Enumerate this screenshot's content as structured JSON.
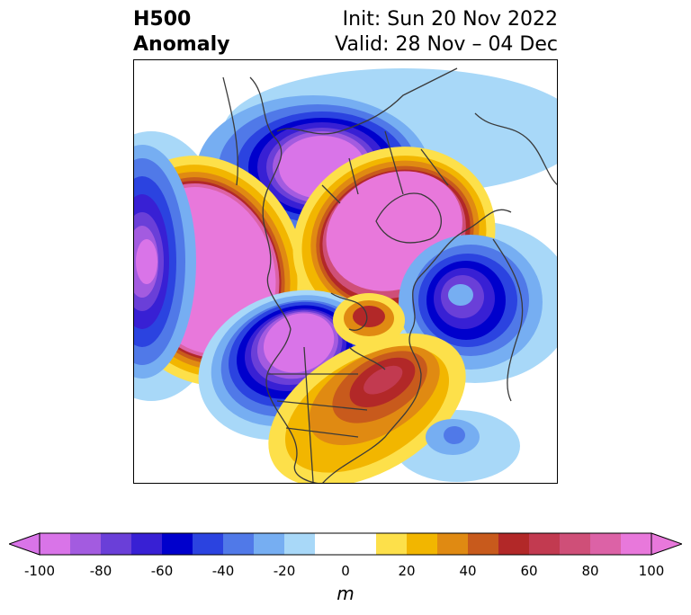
{
  "title": {
    "line1": "H500",
    "line2": "Anomaly",
    "init": "Init: Sun 20 Nov 2022",
    "valid": "Valid: 28 Nov – 04 Dec"
  },
  "colorbar": {
    "unit": "m",
    "ticks": [
      "-100",
      "-80",
      "-60",
      "-40",
      "-20",
      "0",
      "20",
      "40",
      "60",
      "80",
      "100"
    ],
    "bins": [
      {
        "range": [
          -100,
          -90
        ],
        "color": "#d974e8"
      },
      {
        "range": [
          -90,
          -80
        ],
        "color": "#a35be0"
      },
      {
        "range": [
          -80,
          -70
        ],
        "color": "#6a3fd8"
      },
      {
        "range": [
          -70,
          -60
        ],
        "color": "#3820d4"
      },
      {
        "range": [
          -60,
          -50
        ],
        "color": "#0000cc"
      },
      {
        "range": [
          -50,
          -40
        ],
        "color": "#2b43e0"
      },
      {
        "range": [
          -40,
          -30
        ],
        "color": "#5079e8"
      },
      {
        "range": [
          -30,
          -20
        ],
        "color": "#76aef2"
      },
      {
        "range": [
          -20,
          -10
        ],
        "color": "#a8d8f8"
      },
      {
        "range": [
          -10,
          10
        ],
        "color": "#ffffff"
      },
      {
        "range": [
          10,
          20
        ],
        "color": "#fde04a"
      },
      {
        "range": [
          20,
          30
        ],
        "color": "#f2b600"
      },
      {
        "range": [
          30,
          40
        ],
        "color": "#e08a12"
      },
      {
        "range": [
          40,
          50
        ],
        "color": "#c85a1c"
      },
      {
        "range": [
          50,
          60
        ],
        "color": "#b22828"
      },
      {
        "range": [
          60,
          70
        ],
        "color": "#c23a50"
      },
      {
        "range": [
          70,
          80
        ],
        "color": "#cf4f78"
      },
      {
        "range": [
          80,
          90
        ],
        "color": "#dc62a6"
      },
      {
        "range": [
          90,
          100
        ],
        "color": "#e878db"
      }
    ],
    "extend_low_color": "#d974e8",
    "extend_high_color": "#e878db"
  },
  "map": {
    "projection": "north-polar-stereographic",
    "anomaly_centers": [
      {
        "name": "north-pacific-ridge",
        "sign": "positive",
        "peak_m": 100
      },
      {
        "name": "alaska-arctic-low",
        "sign": "negative",
        "peak_m": -100
      },
      {
        "name": "siberia-greenland-ridge",
        "sign": "positive",
        "peak_m": 100
      },
      {
        "name": "western-north-america-low",
        "sign": "negative",
        "peak_m": -100
      },
      {
        "name": "eastern-north-america-ridge",
        "sign": "positive",
        "peak_m": 60
      },
      {
        "name": "northwest-pacific-low",
        "sign": "negative",
        "peak_m": -80
      },
      {
        "name": "central-pacific-low",
        "sign": "negative",
        "peak_m": -90
      }
    ]
  }
}
